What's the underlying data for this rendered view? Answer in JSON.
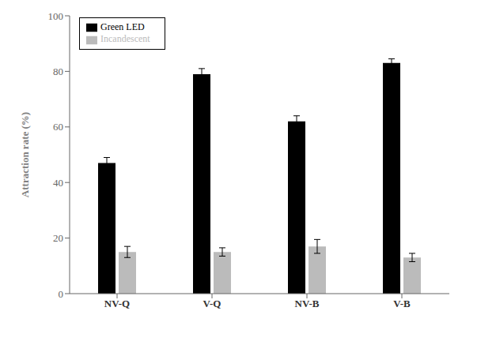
{
  "chart_data": {
    "type": "bar",
    "categories": [
      "NV-Q",
      "V-Q",
      "NV-B",
      "V-B"
    ],
    "series": [
      {
        "name": "Green LED",
        "color": "#000000",
        "values": [
          47,
          79,
          62,
          83
        ],
        "errors": [
          2.0,
          2.0,
          2.0,
          1.5
        ]
      },
      {
        "name": "Incandescent",
        "color": "#bbbbbb",
        "values": [
          15,
          15,
          17,
          13
        ],
        "errors": [
          2.0,
          1.5,
          2.5,
          1.5
        ]
      }
    ],
    "ylabel": "Attraction rate (%)",
    "ylim": [
      0,
      100
    ],
    "yticks": [
      0,
      20,
      40,
      60,
      80,
      100
    ],
    "legend": "upper left",
    "grid": false
  }
}
